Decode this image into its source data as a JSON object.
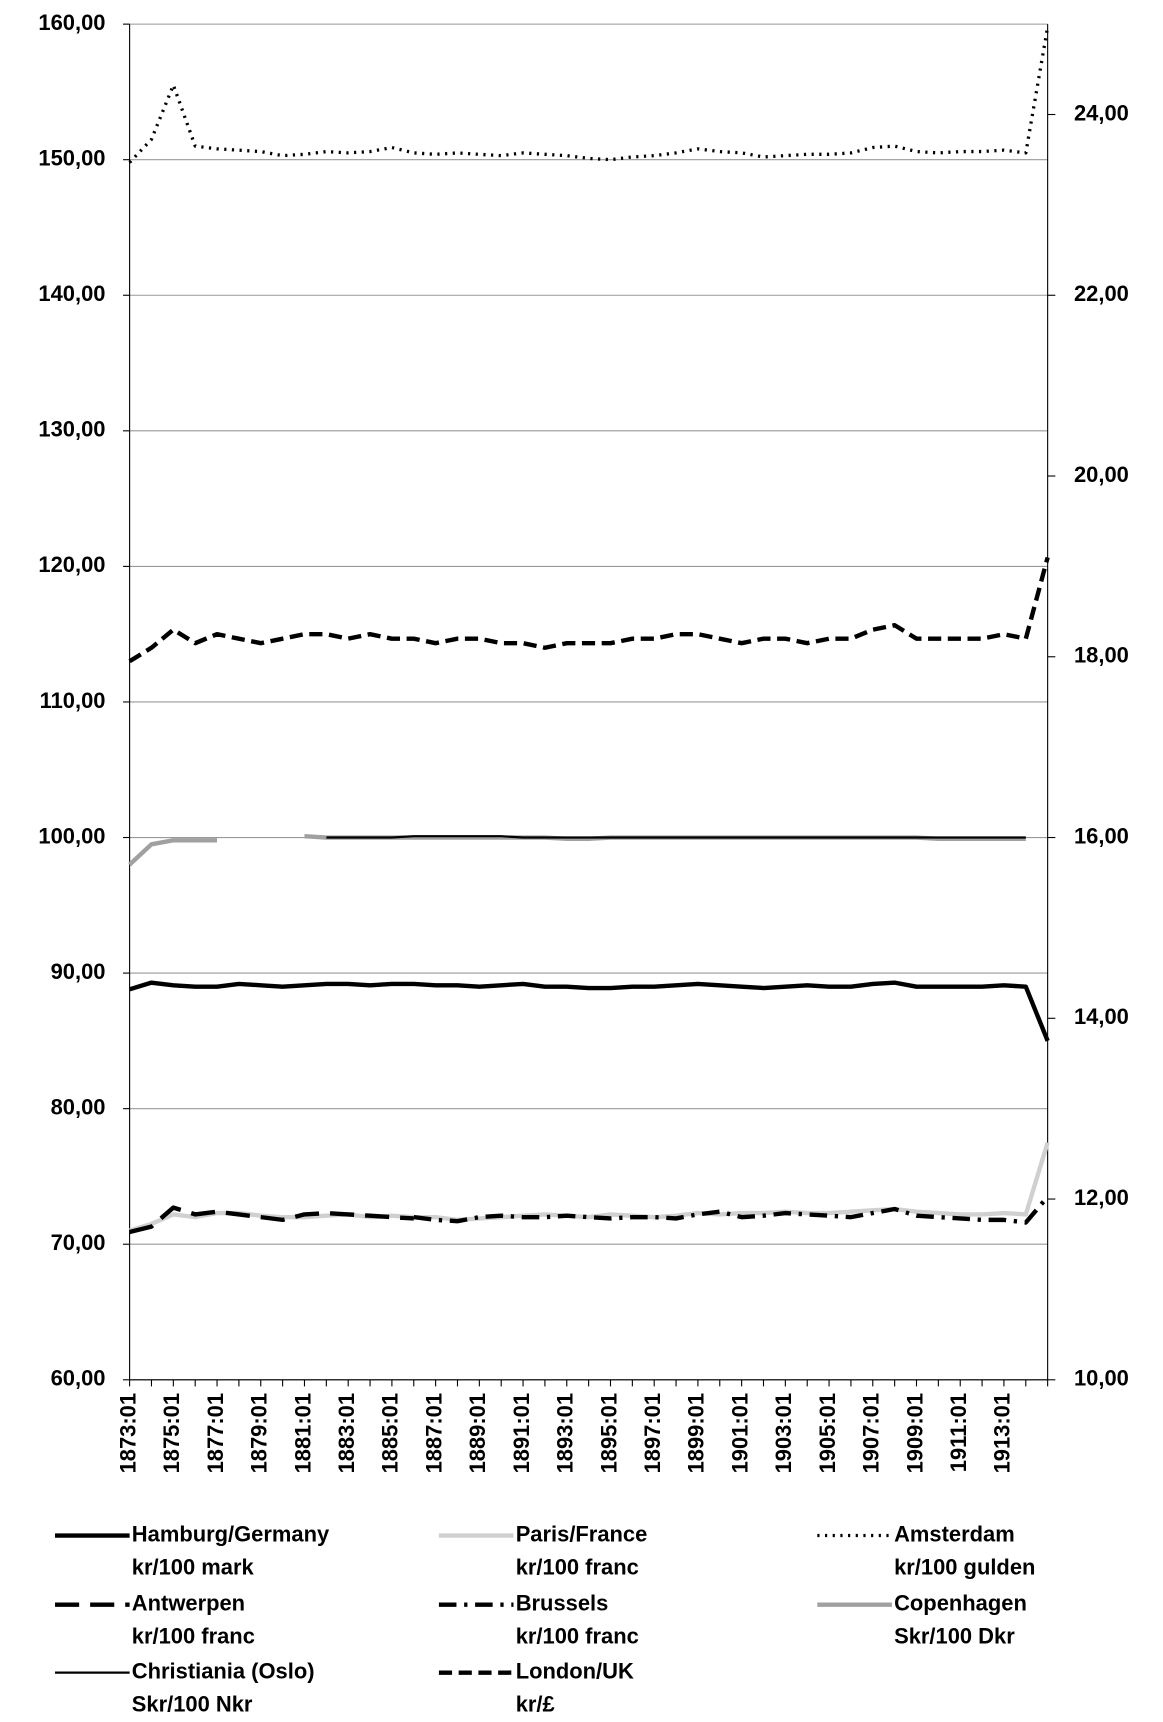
{
  "chart_data": {
    "type": "line",
    "categories": [
      "1873:01",
      null,
      "1875:01",
      null,
      "1877:01",
      null,
      "1879:01",
      null,
      "1881:01",
      null,
      "1883:01",
      null,
      "1885:01",
      null,
      "1887:01",
      null,
      "1889:01",
      null,
      "1891:01",
      null,
      "1893:01",
      null,
      "1895:01",
      null,
      "1897:01",
      null,
      "1899:01",
      null,
      "1901:01",
      null,
      "1903:01",
      null,
      "1905:01",
      null,
      "1907:01",
      null,
      "1909:01",
      null,
      "1911:01",
      null,
      "1913:01",
      null,
      null
    ],
    "ylim": [
      60,
      160
    ],
    "yticks": [
      {
        "value": 60,
        "label": "60,00"
      },
      {
        "value": 70,
        "label": "70,00"
      },
      {
        "value": 80,
        "label": "80,00"
      },
      {
        "value": 90,
        "label": "90,00"
      },
      {
        "value": 100,
        "label": "100,00"
      },
      {
        "value": 110,
        "label": "110,00"
      },
      {
        "value": 120,
        "label": "120,00"
      },
      {
        "value": 130,
        "label": "130,00"
      },
      {
        "value": 140,
        "label": "140,00"
      },
      {
        "value": 150,
        "label": "150,00"
      },
      {
        "value": 160,
        "label": "160,00"
      }
    ],
    "y2lim": [
      10,
      25
    ],
    "y2ticks": [
      {
        "value": 10,
        "label": "10,00"
      },
      {
        "value": 12,
        "label": "12,00"
      },
      {
        "value": 14,
        "label": "14,00"
      },
      {
        "value": 16,
        "label": "16,00"
      },
      {
        "value": 18,
        "label": "18,00"
      },
      {
        "value": 20,
        "label": "20,00"
      },
      {
        "value": 22,
        "label": "22,00"
      },
      {
        "value": 24,
        "label": "24,00"
      }
    ],
    "grid": true,
    "legend": "bottom",
    "series": [
      {
        "name": "Hamburg/Germany\nkr/100 mark",
        "color": "#000000",
        "style": "solid",
        "width": 4,
        "values": [
          88.8,
          89.3,
          89.1,
          89.0,
          89.0,
          89.2,
          89.1,
          89.0,
          89.1,
          89.2,
          89.2,
          89.1,
          89.2,
          89.2,
          89.1,
          89.1,
          89.0,
          89.1,
          89.2,
          89.0,
          89.0,
          88.9,
          88.9,
          89.0,
          89.0,
          89.1,
          89.2,
          89.1,
          89.0,
          88.9,
          89.0,
          89.1,
          89.0,
          89.0,
          89.2,
          89.3,
          89.0,
          89.0,
          89.0,
          89.0,
          89.1,
          89.0,
          85.0
        ]
      },
      {
        "name": "Paris/France\nkr/100 franc",
        "color": "#d0d0d0",
        "style": "solid",
        "width": 4,
        "values": [
          71.0,
          71.5,
          72.2,
          72.0,
          72.3,
          72.3,
          72.1,
          72.0,
          72.0,
          72.1,
          72.2,
          72.0,
          72.1,
          72.0,
          72.0,
          71.8,
          71.9,
          72.0,
          72.1,
          72.2,
          72.1,
          72.0,
          72.2,
          72.1,
          72.0,
          72.1,
          72.3,
          72.2,
          72.3,
          72.3,
          72.4,
          72.3,
          72.3,
          72.4,
          72.5,
          72.6,
          72.4,
          72.3,
          72.2,
          72.2,
          72.3,
          72.2,
          77.5
        ]
      },
      {
        "name": "Amsterdam\nkr/100 gulden",
        "color": "#000000",
        "style": "dotted",
        "width": 3,
        "values": [
          149.8,
          151.5,
          155.5,
          151.0,
          150.8,
          150.7,
          150.6,
          150.3,
          150.4,
          150.6,
          150.5,
          150.6,
          150.9,
          150.5,
          150.4,
          150.5,
          150.4,
          150.3,
          150.5,
          150.4,
          150.3,
          150.1,
          150.0,
          150.2,
          150.3,
          150.5,
          150.8,
          150.6,
          150.5,
          150.2,
          150.3,
          150.4,
          150.4,
          150.5,
          150.9,
          151.0,
          150.6,
          150.5,
          150.6,
          150.6,
          150.7,
          150.5,
          159.8
        ]
      },
      {
        "name": "Antwerpen\nkr/100 franc",
        "color": "#000000",
        "style": "long-dash",
        "width": 4,
        "values": [
          70.9,
          71.3,
          72.7,
          72.2,
          72.4,
          72.2,
          72.0,
          71.8,
          72.2,
          72.3,
          72.2,
          72.1,
          72.0,
          71.9,
          null,
          null,
          null,
          null,
          null,
          null,
          null,
          null,
          null,
          null,
          null,
          null,
          null,
          null,
          null,
          null,
          null,
          null,
          null,
          null,
          null,
          null,
          null,
          null,
          null,
          null,
          null,
          null,
          null
        ]
      },
      {
        "name": "Brussels\nkr/100 franc",
        "color": "#000000",
        "style": "dash-dot",
        "width": 4,
        "values": [
          null,
          null,
          null,
          null,
          null,
          null,
          null,
          null,
          null,
          null,
          null,
          null,
          null,
          72.0,
          71.8,
          71.7,
          72.0,
          72.1,
          72.0,
          72.0,
          72.1,
          72.0,
          71.9,
          72.0,
          72.0,
          71.9,
          72.2,
          72.4,
          72.0,
          72.1,
          72.3,
          72.2,
          72.1,
          72.0,
          72.3,
          72.6,
          72.1,
          72.0,
          71.9,
          71.8,
          71.8,
          71.6,
          73.5
        ]
      },
      {
        "name": "Copenhagen\nSkr/100 Dkr",
        "color": "#a0a0a0",
        "style": "solid",
        "width": 4,
        "values": [
          98.0,
          99.5,
          99.8,
          99.8,
          99.8,
          null,
          null,
          null,
          100.1,
          100.0,
          100.0,
          100.0,
          100.0,
          100.0,
          100.0,
          100.0,
          100.0,
          100.0,
          100.0,
          100.0,
          99.9,
          99.9,
          100.0,
          100.0,
          100.0,
          100.0,
          100.0,
          100.0,
          100.0,
          100.0,
          100.0,
          100.0,
          100.0,
          100.0,
          100.0,
          100.0,
          100.0,
          99.9,
          99.9,
          99.9,
          99.9,
          99.9,
          null
        ]
      },
      {
        "name": "Christiania (Oslo)\nSkr/100 Nkr",
        "color": "#000000",
        "style": "solid",
        "width": 2,
        "values": [
          null,
          null,
          null,
          null,
          null,
          null,
          null,
          null,
          null,
          100.0,
          100.0,
          100.0,
          100.0,
          100.1,
          100.1,
          100.1,
          100.1,
          100.1,
          100.0,
          100.0,
          100.0,
          100.0,
          100.0,
          100.0,
          100.0,
          100.0,
          100.0,
          100.0,
          100.0,
          100.0,
          100.0,
          100.0,
          100.0,
          100.0,
          100.0,
          100.0,
          100.0,
          100.0,
          100.0,
          100.0,
          100.0,
          100.0,
          null
        ]
      },
      {
        "name": "London/UK\nkr/£",
        "color": "#000000",
        "style": "dashed",
        "width": 4,
        "axis": "y2",
        "values": [
          17.95,
          18.1,
          18.3,
          18.15,
          18.25,
          18.2,
          18.15,
          18.2,
          18.25,
          18.25,
          18.2,
          18.25,
          18.2,
          18.2,
          18.15,
          18.2,
          18.2,
          18.15,
          18.15,
          18.1,
          18.15,
          18.15,
          18.15,
          18.2,
          18.2,
          18.25,
          18.25,
          18.2,
          18.15,
          18.2,
          18.2,
          18.15,
          18.2,
          18.2,
          18.3,
          18.35,
          18.2,
          18.2,
          18.2,
          18.2,
          18.25,
          18.2,
          19.1
        ]
      }
    ]
  }
}
